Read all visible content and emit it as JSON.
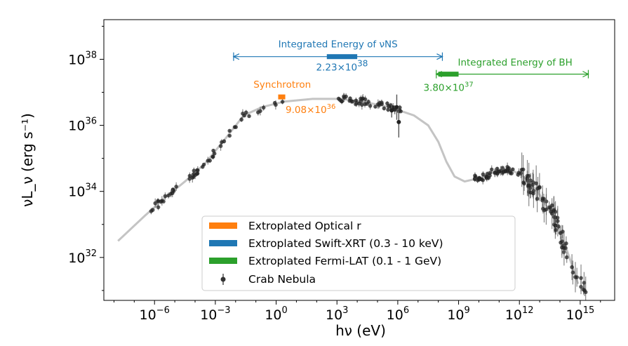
{
  "chart_data": {
    "type": "scatter",
    "title": "",
    "xlabel": "hν (eV)",
    "ylabel": "νL_ν (erg s⁻¹)",
    "xscale": "log",
    "yscale": "log",
    "xlim_log10": [
      -8.5,
      16.7
    ],
    "ylim_log10": [
      30.7,
      39.2
    ],
    "x_ticks": [
      {
        "base": "10",
        "exp": "−6",
        "log": -6
      },
      {
        "base": "10",
        "exp": "−3",
        "log": -3
      },
      {
        "base": "10",
        "exp": "0",
        "log": 0
      },
      {
        "base": "10",
        "exp": "3",
        "log": 3
      },
      {
        "base": "10",
        "exp": "6",
        "log": 6
      },
      {
        "base": "10",
        "exp": "9",
        "log": 9
      },
      {
        "base": "10",
        "exp": "12",
        "log": 12
      },
      {
        "base": "10",
        "exp": "15",
        "log": 15
      }
    ],
    "y_ticks": [
      {
        "base": "10",
        "exp": "32",
        "log": 32
      },
      {
        "base": "10",
        "exp": "34",
        "log": 34
      },
      {
        "base": "10",
        "exp": "36",
        "log": 36
      },
      {
        "base": "10",
        "exp": "38",
        "log": 38
      }
    ],
    "model_curve_log": [
      [
        -7.8,
        32.5
      ],
      [
        -6.5,
        33.25
      ],
      [
        -5.5,
        33.8
      ],
      [
        -4.5,
        34.3
      ],
      [
        -3.5,
        34.85
      ],
      [
        -2.5,
        35.6
      ],
      [
        -1.6,
        36.3
      ],
      [
        -0.7,
        36.55
      ],
      [
        0.4,
        36.72
      ],
      [
        1.8,
        36.8
      ],
      [
        3.2,
        36.8
      ],
      [
        4.4,
        36.7
      ],
      [
        5.6,
        36.55
      ],
      [
        6.8,
        36.3
      ],
      [
        7.5,
        36.0
      ],
      [
        8.0,
        35.5
      ],
      [
        8.4,
        34.9
      ],
      [
        8.8,
        34.45
      ],
      [
        9.3,
        34.3
      ],
      [
        10.0,
        34.4
      ],
      [
        10.8,
        34.6
      ],
      [
        11.6,
        34.65
      ],
      [
        12.2,
        34.45
      ],
      [
        12.9,
        34.0
      ],
      [
        13.7,
        33.2
      ],
      [
        14.3,
        32.3
      ],
      [
        14.9,
        31.2
      ]
    ],
    "series": [
      {
        "name": "Extroplated Optical r",
        "color": "#ff7f0e",
        "x_range_log10": [
          0.1,
          0.45
        ],
        "y_log10": 36.86,
        "label": "Synchrotron",
        "value_text": "9.08×10",
        "value_exp": "36"
      },
      {
        "name": "Extroplated Swift-XRT (0.3 - 10 keV)",
        "color": "#1f77b4",
        "x_range_log10": [
          2.5,
          4.0
        ],
        "y_log10": 38.08,
        "label": "Integrated Energy of νNS",
        "value_text": "2.23×10",
        "value_exp": "38",
        "arrow_range_log10": [
          -2.1,
          8.2
        ]
      },
      {
        "name": "Extroplated Fermi-LAT (0.1 - 1 GeV)",
        "color": "#2ca02c",
        "x_range_log10": [
          8.0,
          9.0
        ],
        "y_log10": 37.55,
        "label": "Integrated Energy of BH",
        "value_text": "3.80×10",
        "value_exp": "37",
        "arrow_range_log10": [
          7.9,
          15.4
        ]
      },
      {
        "name": "Crab Nebula",
        "color": "#000000",
        "markers": "points with error bars"
      }
    ]
  }
}
